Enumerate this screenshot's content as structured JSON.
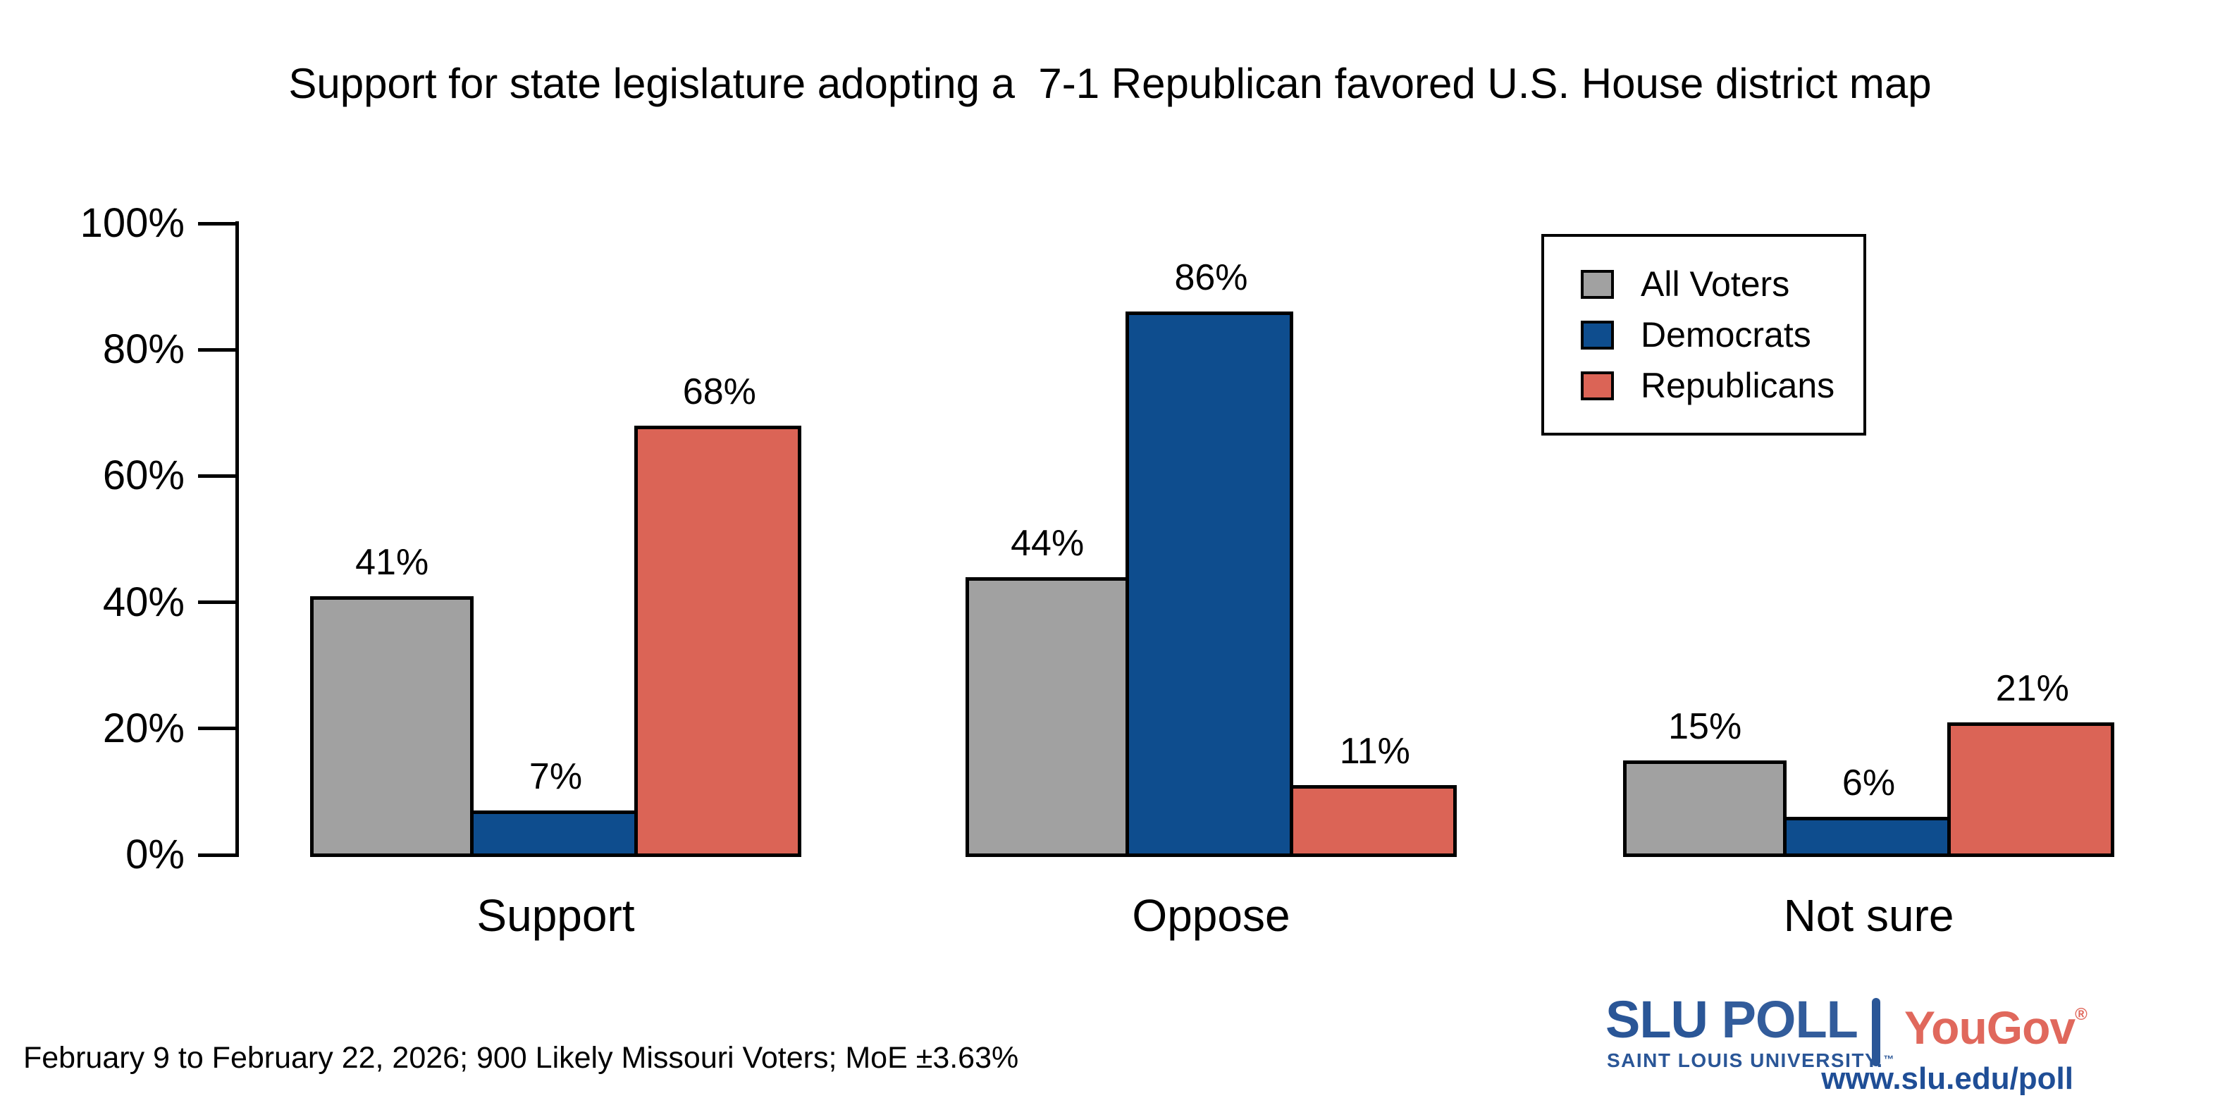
{
  "title": "Support for state legislature adopting a  7-1 Republican favored U.S. House district map",
  "footer_note": "February 9 to February 22, 2026; 900 Likely Missouri Voters; MoE ±3.63%",
  "chart_data": {
    "type": "bar",
    "title": "Support for state legislature adopting a  7-1 Republican favored U.S. House district map",
    "categories": [
      "Support",
      "Oppose",
      "Not sure"
    ],
    "series": [
      {
        "name": "All Voters",
        "color": "#a1a1a1",
        "values": [
          41,
          44,
          15
        ]
      },
      {
        "name": "Democrats",
        "color": "#0e4d8e",
        "values": [
          7,
          86,
          6
        ]
      },
      {
        "name": "Republicans",
        "color": "#db6456",
        "values": [
          68,
          11,
          21
        ]
      }
    ],
    "value_labels": [
      [
        "41%",
        "44%",
        "15%"
      ],
      [
        "7%",
        "86%",
        "6%"
      ],
      [
        "68%",
        "11%",
        "21%"
      ]
    ],
    "xlabel": "",
    "ylabel": "",
    "ylim": [
      0,
      100
    ],
    "yticks": [
      0,
      20,
      40,
      60,
      80,
      100
    ],
    "ytick_labels": [
      "0%",
      "20%",
      "40%",
      "60%",
      "80%",
      "100%"
    ],
    "grid": false,
    "legend_position": "top-right",
    "bar_border_color": "#000000",
    "axis_color": "#000000"
  },
  "branding": {
    "slu_word": "SLU",
    "poll_word": "POLL",
    "slu_subtitle": "SAINT LOUIS UNIVERSITY.",
    "slu_trademark": "™",
    "yougov": "YouGov",
    "yougov_reg": "®",
    "url": "www.slu.edu/poll",
    "slu_blue": "#2a5697",
    "url_blue": "#1f4e96",
    "yougov_red": "#e0685c"
  }
}
